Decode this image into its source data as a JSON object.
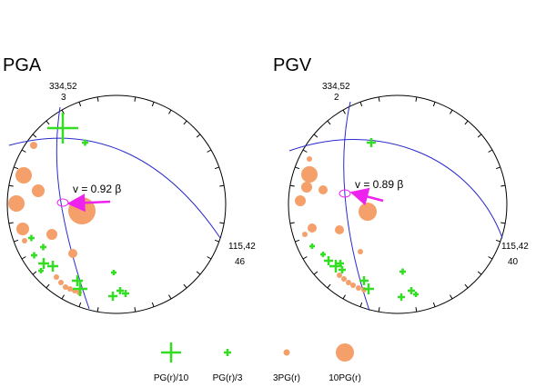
{
  "panels": [
    {
      "title": "PGA",
      "pole_top": "334,52",
      "pole_top_num": "3",
      "pole_right": "115,42",
      "pole_right_num": "46",
      "annotation": "v = 0.92 β"
    },
    {
      "title": "PGV",
      "pole_top": "334,52",
      "pole_top_num": "2",
      "pole_right": "115,42",
      "pole_right_num": "40",
      "annotation": "v = 0.89 β"
    }
  ],
  "legend": [
    {
      "label": "PG(r)/10",
      "symbol": "large-green-cross"
    },
    {
      "label": "PG(r)/3",
      "symbol": "small-green-cross"
    },
    {
      "label": "3PG(r)",
      "symbol": "small-orange-dot"
    },
    {
      "label": "10PG(r)",
      "symbol": "large-orange-dot"
    }
  ],
  "colors": {
    "cross": "#33dd22",
    "dot": "#f5a06a",
    "circle_line": "#2a2acc",
    "arrow": "#ee22ee"
  }
}
